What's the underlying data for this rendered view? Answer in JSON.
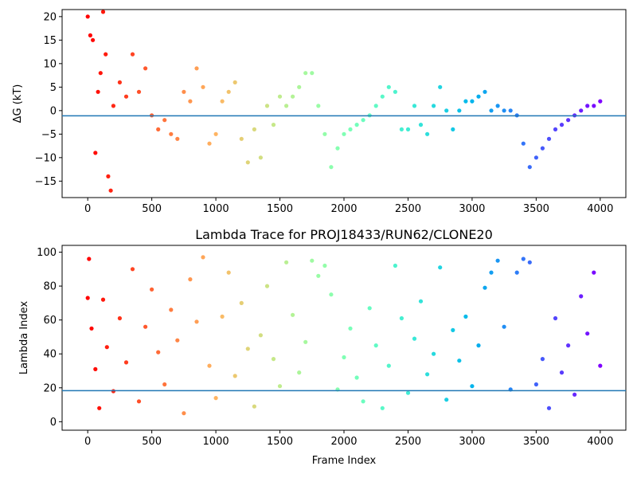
{
  "chart_data": [
    {
      "type": "scatter",
      "title": "",
      "xlabel": "",
      "ylabel": "ΔG (kT)",
      "xlim": [
        -200,
        4200
      ],
      "ylim": [
        -18.5,
        21.5
      ],
      "xticks": [
        0,
        500,
        1000,
        1500,
        2000,
        2500,
        3000,
        3500,
        4000
      ],
      "yticks": [
        -15,
        -10,
        -5,
        0,
        5,
        10,
        15,
        20
      ],
      "hline": -1.1,
      "hline_color": "#1f77b4",
      "colormap": "rainbow_r (red at frame 0 → violet at frame 4000)",
      "series": [
        {
          "x": [
            0,
            20,
            40,
            60,
            80,
            100,
            120,
            140,
            160,
            180,
            200,
            250,
            300,
            350,
            400,
            450,
            500,
            550,
            600,
            650,
            700,
            750,
            800,
            850,
            900,
            950,
            1000,
            1050,
            1100,
            1150,
            1200,
            1250,
            1300,
            1350,
            1400,
            1450,
            1500,
            1550,
            1600,
            1650,
            1700,
            1750,
            1800,
            1850,
            1900,
            1950,
            2000,
            2050,
            2100,
            2150,
            2200,
            2250,
            2300,
            2350,
            2400,
            2450,
            2500,
            2550,
            2600,
            2650,
            2700,
            2750,
            2800,
            2850,
            2900,
            2950,
            3000,
            3050,
            3100,
            3150,
            3200,
            3250,
            3300,
            3350,
            3400,
            3450,
            3500,
            3550,
            3600,
            3650,
            3700,
            3750,
            3800,
            3850,
            3900,
            3950,
            4000
          ],
          "y": [
            20,
            16,
            15,
            -9,
            4,
            8,
            21,
            12,
            -14,
            -17,
            1,
            6,
            3,
            12,
            4,
            9,
            -1,
            -4,
            -2,
            -5,
            -6,
            4,
            2,
            9,
            5,
            -7,
            -5,
            2,
            4,
            6,
            -6,
            -11,
            -4,
            -10,
            1,
            -3,
            3,
            1,
            3,
            5,
            8,
            8,
            1,
            -5,
            -12,
            -8,
            -5,
            -4,
            -3,
            -2,
            -1,
            1,
            3,
            5,
            4,
            -4,
            -4,
            1,
            -3,
            -5,
            1,
            5,
            0,
            -4,
            0,
            2,
            2,
            3,
            4,
            0,
            1,
            0,
            0,
            -1,
            -7,
            -12,
            -10,
            -8,
            -6,
            -4,
            -3,
            -2,
            -1,
            0,
            1,
            1,
            2
          ]
        }
      ]
    },
    {
      "type": "scatter",
      "title": "Lambda Trace for PROJ18433/RUN62/CLONE20",
      "xlabel": "Frame Index",
      "ylabel": "Lambda Index",
      "xlim": [
        -200,
        4200
      ],
      "ylim": [
        -5,
        104
      ],
      "xticks": [
        0,
        500,
        1000,
        1500,
        2000,
        2500,
        3000,
        3500,
        4000
      ],
      "yticks": [
        0,
        20,
        40,
        60,
        80,
        100
      ],
      "hline": 18.3,
      "hline_color": "#1f77b4",
      "colormap": "rainbow_r (red at frame 0 → violet at frame 4000)",
      "series": [
        {
          "x": [
            0,
            10,
            30,
            60,
            90,
            120,
            150,
            200,
            250,
            300,
            350,
            400,
            450,
            500,
            550,
            600,
            650,
            700,
            750,
            800,
            850,
            900,
            950,
            1000,
            1050,
            1100,
            1150,
            1200,
            1250,
            1300,
            1350,
            1400,
            1450,
            1500,
            1550,
            1600,
            1650,
            1700,
            1750,
            1800,
            1850,
            1900,
            1950,
            2000,
            2050,
            2100,
            2150,
            2200,
            2250,
            2300,
            2350,
            2400,
            2450,
            2500,
            2550,
            2600,
            2650,
            2700,
            2750,
            2800,
            2850,
            2900,
            2950,
            3000,
            3050,
            3100,
            3150,
            3200,
            3250,
            3300,
            3350,
            3400,
            3450,
            3500,
            3550,
            3600,
            3650,
            3700,
            3750,
            3800,
            3850,
            3900,
            3950,
            4000
          ],
          "y": [
            73,
            96,
            55,
            31,
            8,
            72,
            44,
            18,
            61,
            35,
            90,
            12,
            56,
            78,
            41,
            22,
            66,
            48,
            5,
            84,
            59,
            97,
            33,
            14,
            62,
            88,
            27,
            70,
            43,
            9,
            51,
            80,
            37,
            21,
            94,
            63,
            29,
            47,
            95,
            86,
            92,
            75,
            19,
            38,
            55,
            26,
            12,
            67,
            45,
            8,
            33,
            92,
            61,
            17,
            49,
            71,
            28,
            40,
            91,
            13,
            54,
            36,
            62,
            21,
            45,
            79,
            88,
            95,
            56,
            19,
            88,
            96,
            94,
            22,
            37,
            8,
            61,
            29,
            45,
            16,
            74,
            52,
            88,
            33
          ]
        }
      ]
    }
  ]
}
